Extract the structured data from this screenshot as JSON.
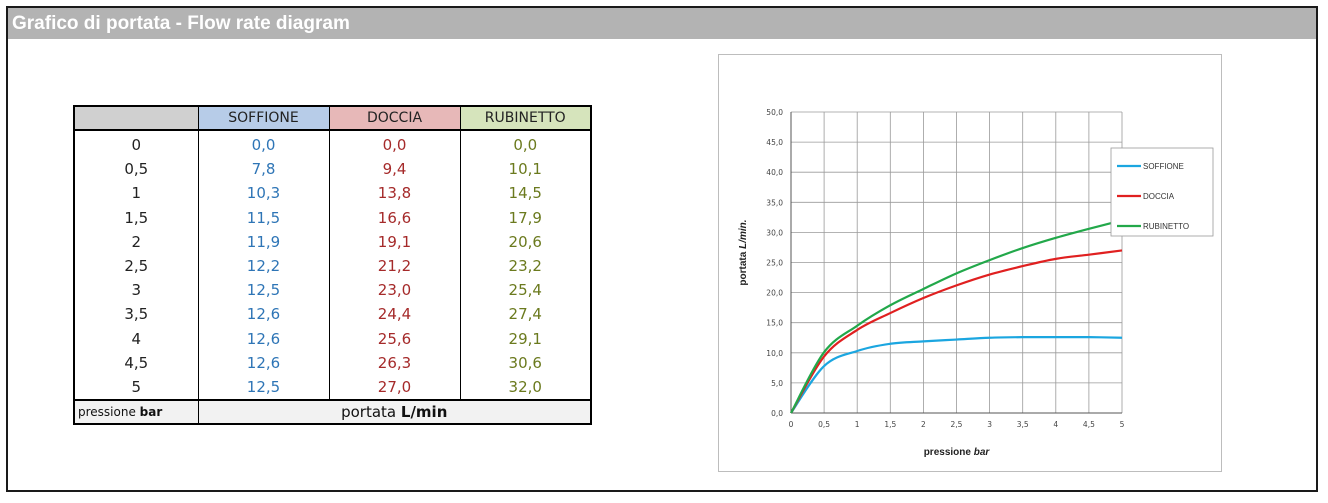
{
  "window": {
    "title": "Grafico di portata - Flow rate diagram"
  },
  "table": {
    "headers": [
      "",
      "SOFFIONE",
      "DOCCIA",
      "RUBINETTO"
    ],
    "header_colors": [
      "#d0d0d0",
      "#b7cce8",
      "#e7b8b8",
      "#d6e4bc"
    ],
    "rows": [
      [
        "0",
        "0,0",
        "0,0",
        "0,0"
      ],
      [
        "0,5",
        "7,8",
        "9,4",
        "10,1"
      ],
      [
        "1",
        "10,3",
        "13,8",
        "14,5"
      ],
      [
        "1,5",
        "11,5",
        "16,6",
        "17,9"
      ],
      [
        "2",
        "11,9",
        "19,1",
        "20,6"
      ],
      [
        "2,5",
        "12,2",
        "21,2",
        "23,2"
      ],
      [
        "3",
        "12,5",
        "23,0",
        "25,4"
      ],
      [
        "3,5",
        "12,6",
        "24,4",
        "27,4"
      ],
      [
        "4",
        "12,6",
        "25,6",
        "29,1"
      ],
      [
        "4,5",
        "12,6",
        "26,3",
        "30,6"
      ],
      [
        "5",
        "12,5",
        "27,0",
        "32,0"
      ]
    ],
    "footer_pressure_label": "pressione",
    "footer_pressure_unit": "bar",
    "footer_flow_label": "portata",
    "footer_flow_unit": "L/min"
  },
  "chart_data": {
    "type": "line",
    "title": "",
    "xlabel": "pressione",
    "xlabel_unit": "bar",
    "ylabel": "portata",
    "ylabel_unit": "L/min.",
    "x": [
      0,
      0.5,
      1,
      1.5,
      2,
      2.5,
      3,
      3.5,
      4,
      4.5,
      5
    ],
    "x_tick_labels": [
      "0",
      "0,5",
      "1",
      "1,5",
      "2",
      "2,5",
      "3",
      "3,5",
      "4",
      "4,5",
      "5"
    ],
    "y_tick_labels": [
      "0,0",
      "5,0",
      "10,0",
      "15,0",
      "20,0",
      "25,0",
      "30,0",
      "35,0",
      "40,0",
      "45,0",
      "50,0"
    ],
    "xlim": [
      0,
      5
    ],
    "ylim": [
      0,
      50
    ],
    "grid": true,
    "legend_position": "right",
    "series": [
      {
        "name": "SOFFIONE",
        "color": "#1ba6e0",
        "values": [
          0,
          7.8,
          10.3,
          11.5,
          11.9,
          12.2,
          12.5,
          12.6,
          12.6,
          12.6,
          12.5
        ]
      },
      {
        "name": "DOCCIA",
        "color": "#e02020",
        "values": [
          0,
          9.4,
          13.8,
          16.6,
          19.1,
          21.2,
          23.0,
          24.4,
          25.6,
          26.3,
          27.0
        ]
      },
      {
        "name": "RUBINETTO",
        "color": "#22a84a",
        "values": [
          0,
          10.1,
          14.5,
          17.9,
          20.6,
          23.2,
          25.4,
          27.4,
          29.1,
          30.6,
          32.0
        ]
      }
    ]
  }
}
